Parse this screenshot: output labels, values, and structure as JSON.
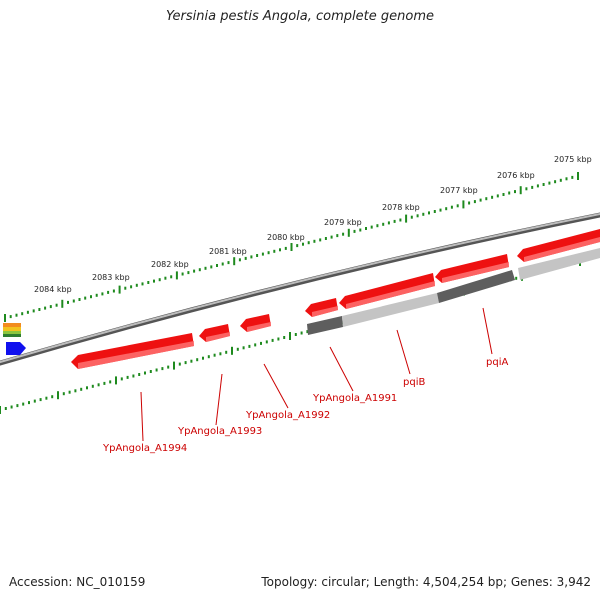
{
  "title": "Yersinia pestis Angola, complete genome",
  "footer": {
    "accession": "Accession: NC_010159",
    "summary": "Topology: circular; Length: 4,504,254 bp; Genes: 3,942"
  },
  "colors": {
    "backbone": "#7a7a7a",
    "tick": "#1e8a1e",
    "gene": "#ee1111",
    "label": "#cc0000",
    "feature_dark": "#5e5e5e",
    "feature_light": "#bcbcbc"
  },
  "scale_labels": [
    "2075 kbp",
    "2076 kbp",
    "2077 kbp",
    "2078 kbp",
    "2079 kbp",
    "2080 kbp",
    "2081 kbp",
    "2082 kbp",
    "2083 kbp",
    "2084 kbp"
  ],
  "gene_labels": [
    "YpAngola_A1991",
    "pqiB",
    "pqiA",
    "YpAngola_A1992",
    "YpAngola_A1993",
    "YpAngola_A1994"
  ],
  "legend_icons": [
    "orange-stack-icon",
    "blue-arrow-icon"
  ]
}
